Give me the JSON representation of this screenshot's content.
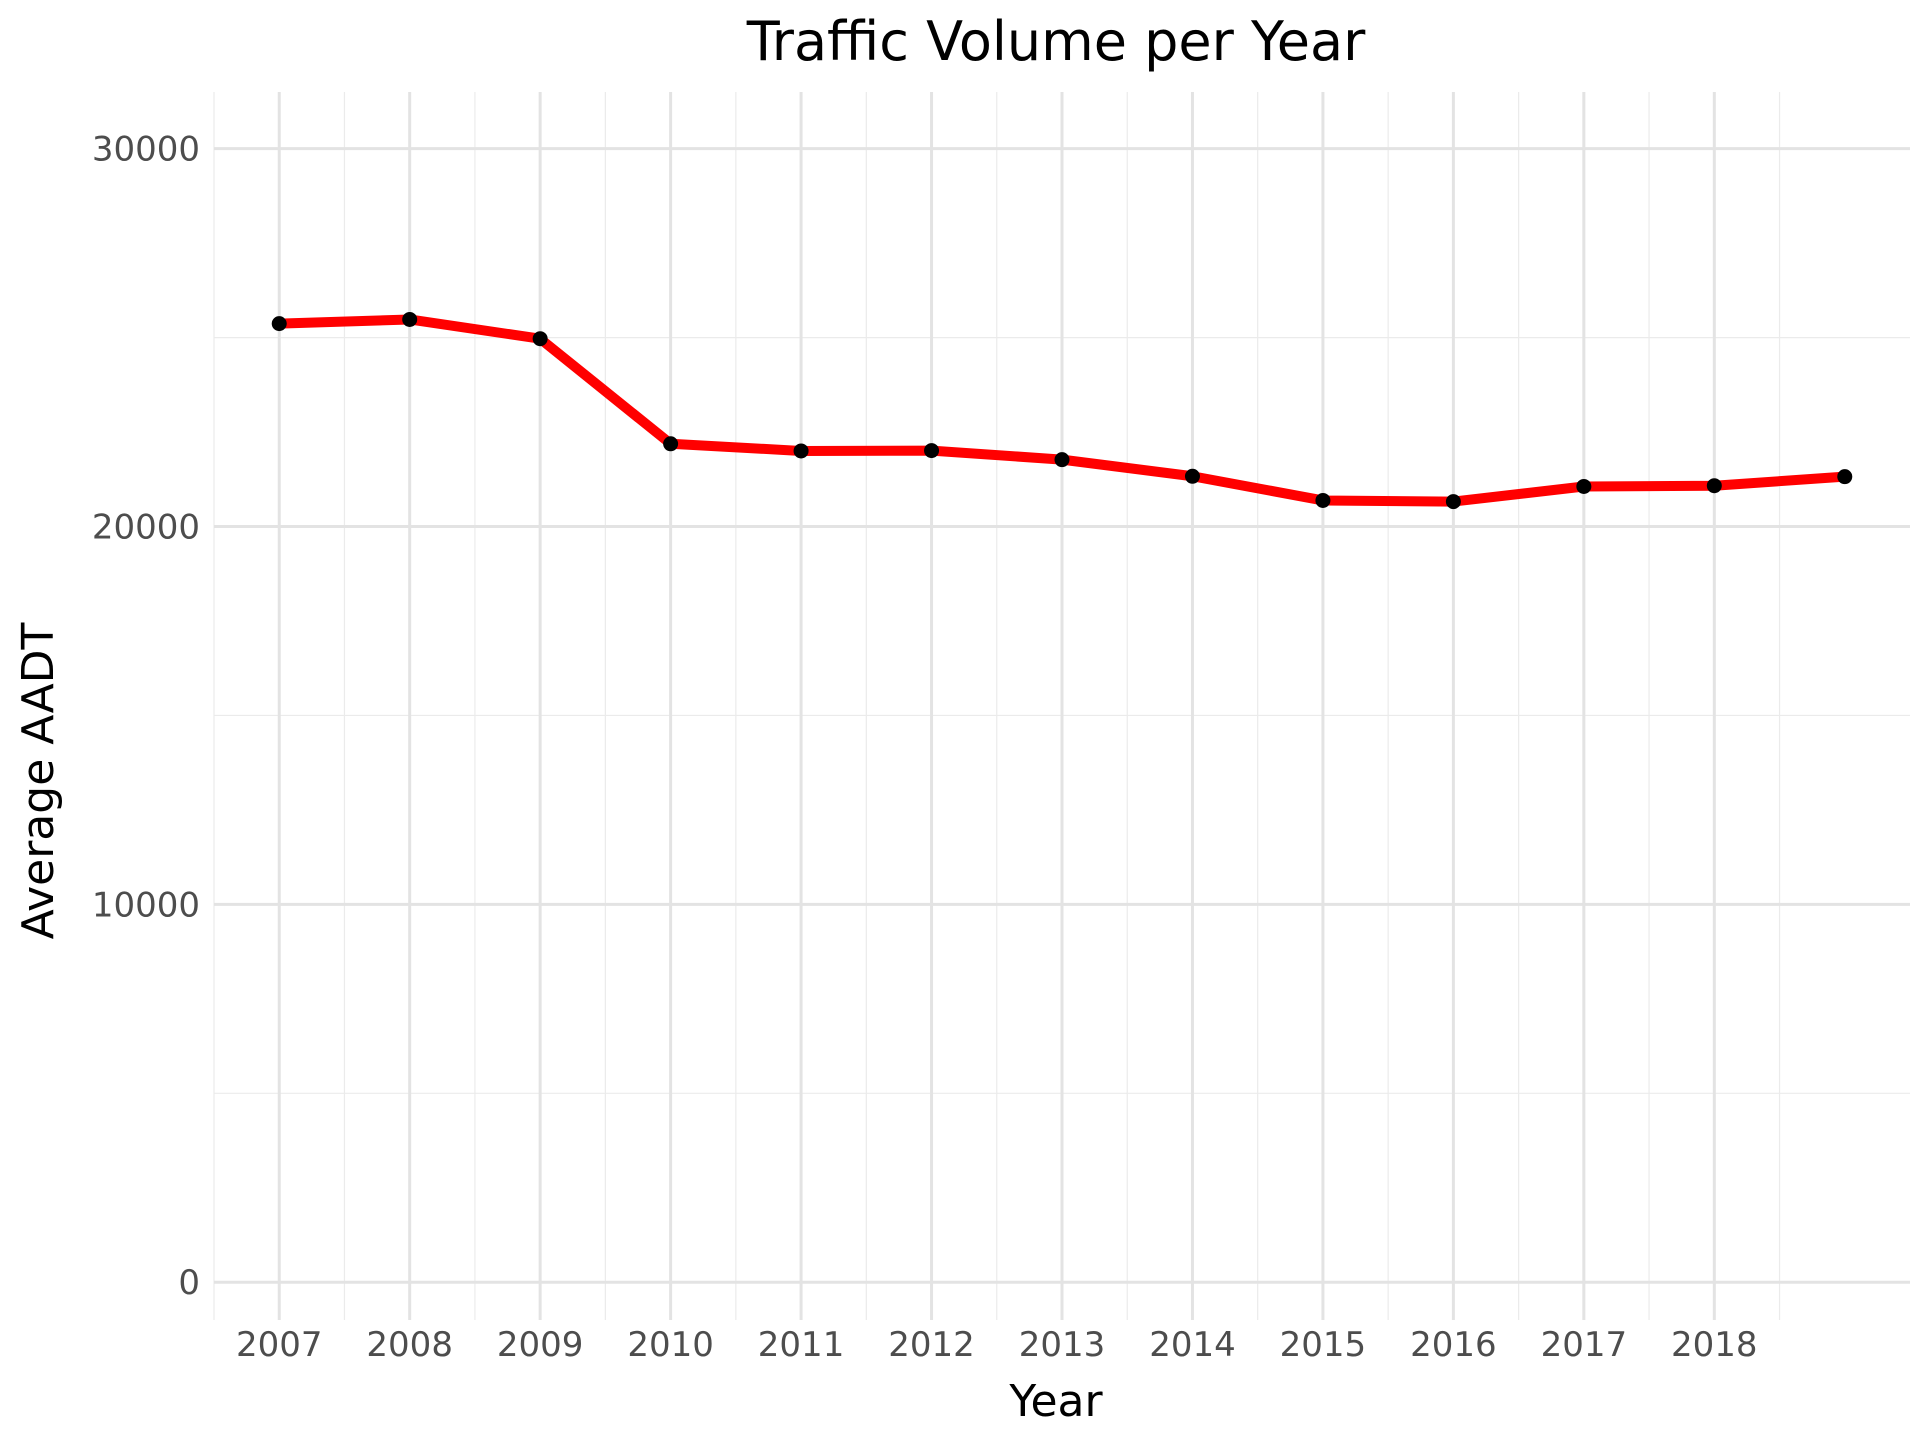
{
  "chart_data": {
    "type": "line",
    "title": "Traffic Volume per Year",
    "xlabel": "Year",
    "ylabel": "Average AADT",
    "x": [
      2007,
      2008,
      2009,
      2010,
      2011,
      2012,
      2013,
      2014,
      2015,
      2016,
      2017,
      2018,
      2019
    ],
    "x_tick_labels": [
      "2007",
      "2008",
      "2009",
      "2010",
      "2011",
      "2012",
      "2013",
      "2014",
      "2015",
      "2016",
      "2017",
      "2018"
    ],
    "y_ticks": [
      0,
      10000,
      20000,
      30000
    ],
    "y_tick_labels": [
      "0",
      "10000",
      "20000",
      "30000"
    ],
    "xlim": [
      2006.5,
      2019.5
    ],
    "ylim": [
      -1000,
      31500
    ],
    "series": [
      {
        "values": [
          25370,
          25480,
          24970,
          22190,
          22000,
          22010,
          21770,
          21330,
          20690,
          20660,
          21060,
          21080,
          21320
        ],
        "line_color": "#ff0000",
        "marker_color": "#000000"
      }
    ],
    "grid": true,
    "legend": "none"
  }
}
